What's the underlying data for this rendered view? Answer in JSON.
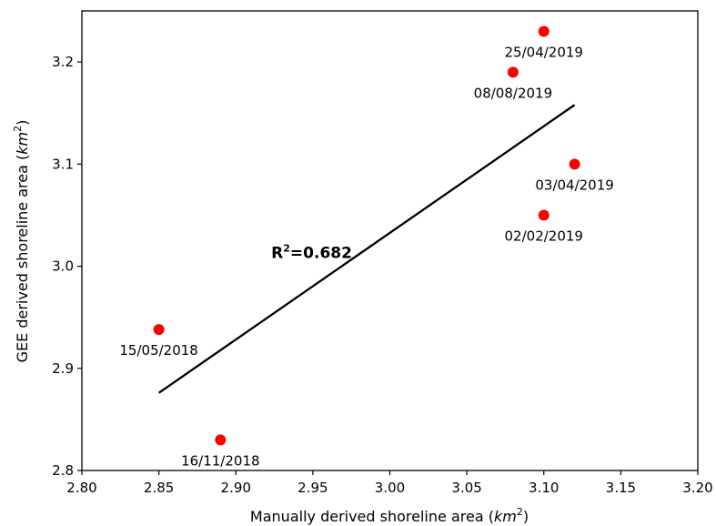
{
  "chart_data": {
    "type": "scatter",
    "xlabel": "Manually derived shoreline area",
    "xlabel_unit_base": "km",
    "xlabel_unit_exp": "2",
    "ylabel": "GEE derived shoreline area",
    "ylabel_unit_base": "km",
    "ylabel_unit_exp": "2",
    "xlim": [
      2.8,
      3.2
    ],
    "ylim": [
      2.8,
      3.25
    ],
    "x_ticks": [
      "2.80",
      "2.85",
      "2.90",
      "2.95",
      "3.00",
      "3.05",
      "3.10",
      "3.15",
      "3.20"
    ],
    "y_ticks": [
      "2.8",
      "2.9",
      "3.0",
      "3.1",
      "3.2"
    ],
    "grid": false,
    "point_color": "#ff0000",
    "line_color": "#000000",
    "points": [
      {
        "x": 2.85,
        "y": 2.938,
        "label": "15/05/2018"
      },
      {
        "x": 2.89,
        "y": 2.83,
        "label": "16/11/2018"
      },
      {
        "x": 3.08,
        "y": 3.19,
        "label": "08/08/2019"
      },
      {
        "x": 3.1,
        "y": 3.23,
        "label": "25/04/2019"
      },
      {
        "x": 3.12,
        "y": 3.1,
        "label": "03/04/2019"
      },
      {
        "x": 3.1,
        "y": 3.05,
        "label": "02/02/2019"
      }
    ],
    "trendline": {
      "x": [
        2.85,
        3.12
      ],
      "y": [
        2.876,
        3.158
      ]
    },
    "annotation": {
      "prefix": "R",
      "sup": "2",
      "suffix": "=0.682",
      "x": 2.923,
      "y": 3.008
    }
  }
}
